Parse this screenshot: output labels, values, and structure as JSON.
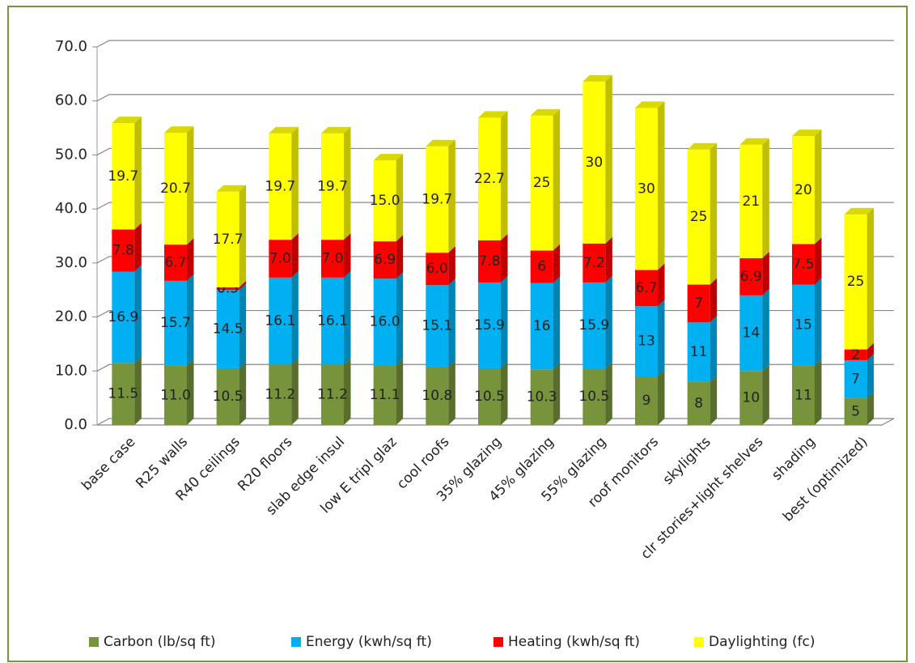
{
  "chart_data": {
    "type": "bar",
    "stacked": true,
    "categories": [
      "base case",
      "R25 walls",
      "R40 ceilings",
      "R20 floors",
      "slab edge insul",
      "low E tripl glaz",
      "cool roofs",
      "35% glazing",
      "45% glazing",
      "55% glazing",
      "roof monitors",
      "skylights",
      "clr stories+light shelves",
      "shading",
      "best (optimized)"
    ],
    "series": [
      {
        "name": "Carbon (lb/sq ft)",
        "color": "#77933c",
        "values": [
          11.5,
          11.0,
          10.5,
          11.2,
          11.2,
          11.1,
          10.8,
          10.5,
          10.3,
          10.5,
          9,
          8,
          10,
          11,
          5
        ],
        "value_labels": [
          "11.5",
          "11.0",
          "10.5",
          "11.2",
          "11.2",
          "11.1",
          "10.8",
          "10.5",
          "10.3",
          "10.5",
          "9",
          "8",
          "10",
          "11",
          "5"
        ]
      },
      {
        "name": "Energy (kwh/sq ft)",
        "color": "#00b0f0",
        "values": [
          16.9,
          15.7,
          14.5,
          16.1,
          16.1,
          16.0,
          15.1,
          15.9,
          16,
          15.9,
          13,
          11,
          14,
          15,
          7
        ],
        "value_labels": [
          "16.9",
          "15.7",
          "14.5",
          "16.1",
          "16.1",
          "16.0",
          "15.1",
          "15.9",
          "16",
          "15.9",
          "13",
          "11",
          "14",
          "15",
          "7"
        ]
      },
      {
        "name": "Heating (kwh/sq ft)",
        "color": "#ff0000",
        "values": [
          7.8,
          6.7,
          0.5,
          7.0,
          7.0,
          6.9,
          6.0,
          7.8,
          6,
          7.2,
          6.7,
          7,
          6.9,
          7.5,
          2
        ],
        "value_labels": [
          "7.8",
          "6.7",
          "0.5",
          "7.0",
          "7.0",
          "6.9",
          "6.0",
          "7.8",
          "6",
          "7.2",
          "6.7",
          "7",
          "6.9",
          "7.5",
          "2"
        ]
      },
      {
        "name": "Daylighting (fc)",
        "color": "#ffff00",
        "values": [
          19.7,
          20.7,
          17.7,
          19.7,
          19.7,
          15.0,
          19.7,
          22.7,
          25,
          30,
          30,
          25,
          21,
          20,
          25
        ],
        "value_labels": [
          "19.7",
          "20.7",
          "17.7",
          "19.7",
          "19.7",
          "15.0",
          "19.7",
          "22.7",
          "25",
          "30",
          "30",
          "25",
          "21",
          "20",
          "25"
        ]
      }
    ],
    "ylim": [
      0,
      70
    ],
    "yticks": [
      {
        "value": 0,
        "label": "0.0"
      },
      {
        "value": 10,
        "label": "10.0"
      },
      {
        "value": 20,
        "label": "20.0"
      },
      {
        "value": 30,
        "label": "30.0"
      },
      {
        "value": 40,
        "label": "40.0"
      },
      {
        "value": 50,
        "label": "50.0"
      },
      {
        "value": 60,
        "label": "60.0"
      },
      {
        "value": 70,
        "label": "70.0"
      }
    ],
    "grid": true,
    "legend": "bottom"
  }
}
